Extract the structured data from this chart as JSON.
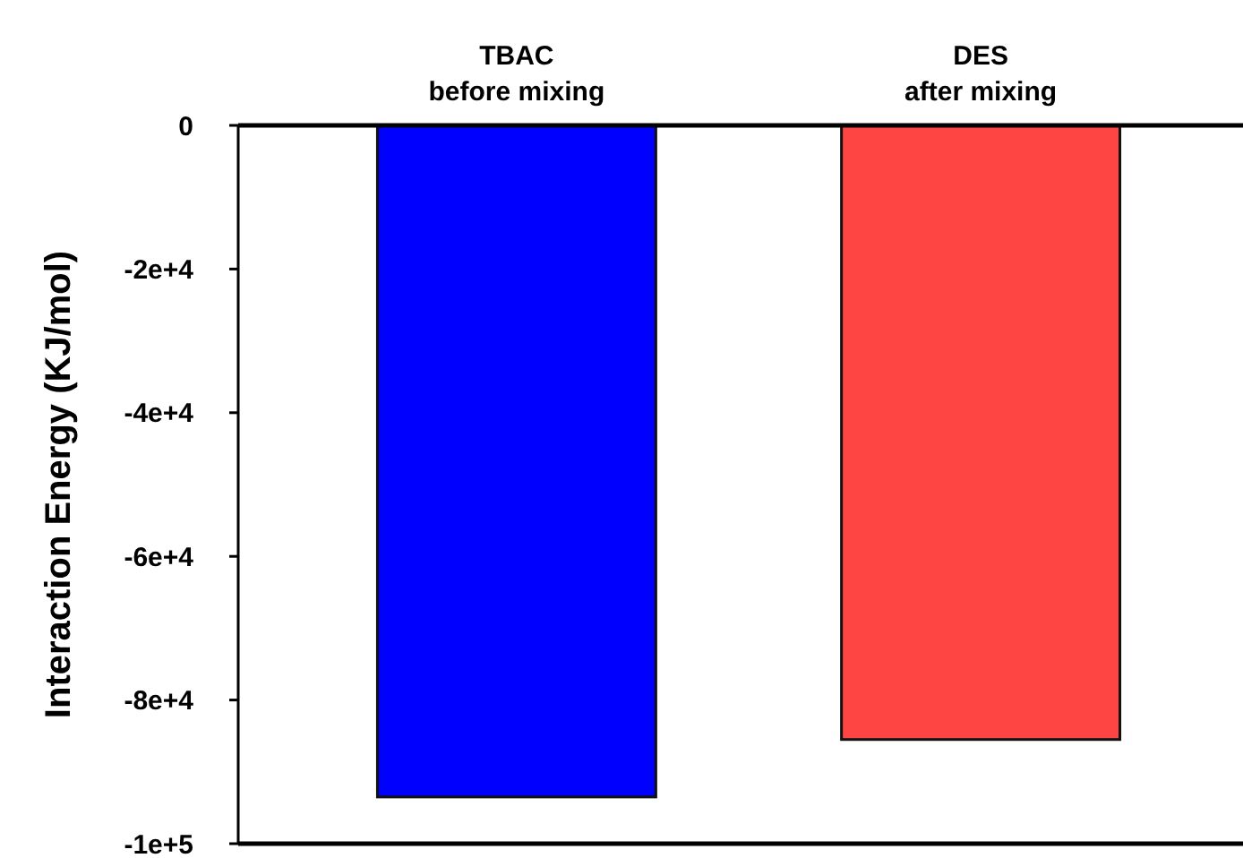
{
  "chart_data": {
    "type": "bar",
    "ylabel": "Interaction Energy (KJ/mol)",
    "categories": [
      "TBAC\nbefore mixing",
      "DES\nafter mixing"
    ],
    "values": [
      -93500,
      -85500
    ],
    "colors": [
      "#0000ff",
      "#ff4444"
    ],
    "ylim": [
      -100000,
      0
    ],
    "yticks": [
      {
        "value": 0,
        "label": "0"
      },
      {
        "value": -20000,
        "label": "-2e+4"
      },
      {
        "value": -40000,
        "label": "-4e+4"
      },
      {
        "value": -60000,
        "label": "-6e+4"
      },
      {
        "value": -80000,
        "label": "-8e+4"
      },
      {
        "value": -100000,
        "label": "-1e+5"
      }
    ],
    "grid": false
  }
}
